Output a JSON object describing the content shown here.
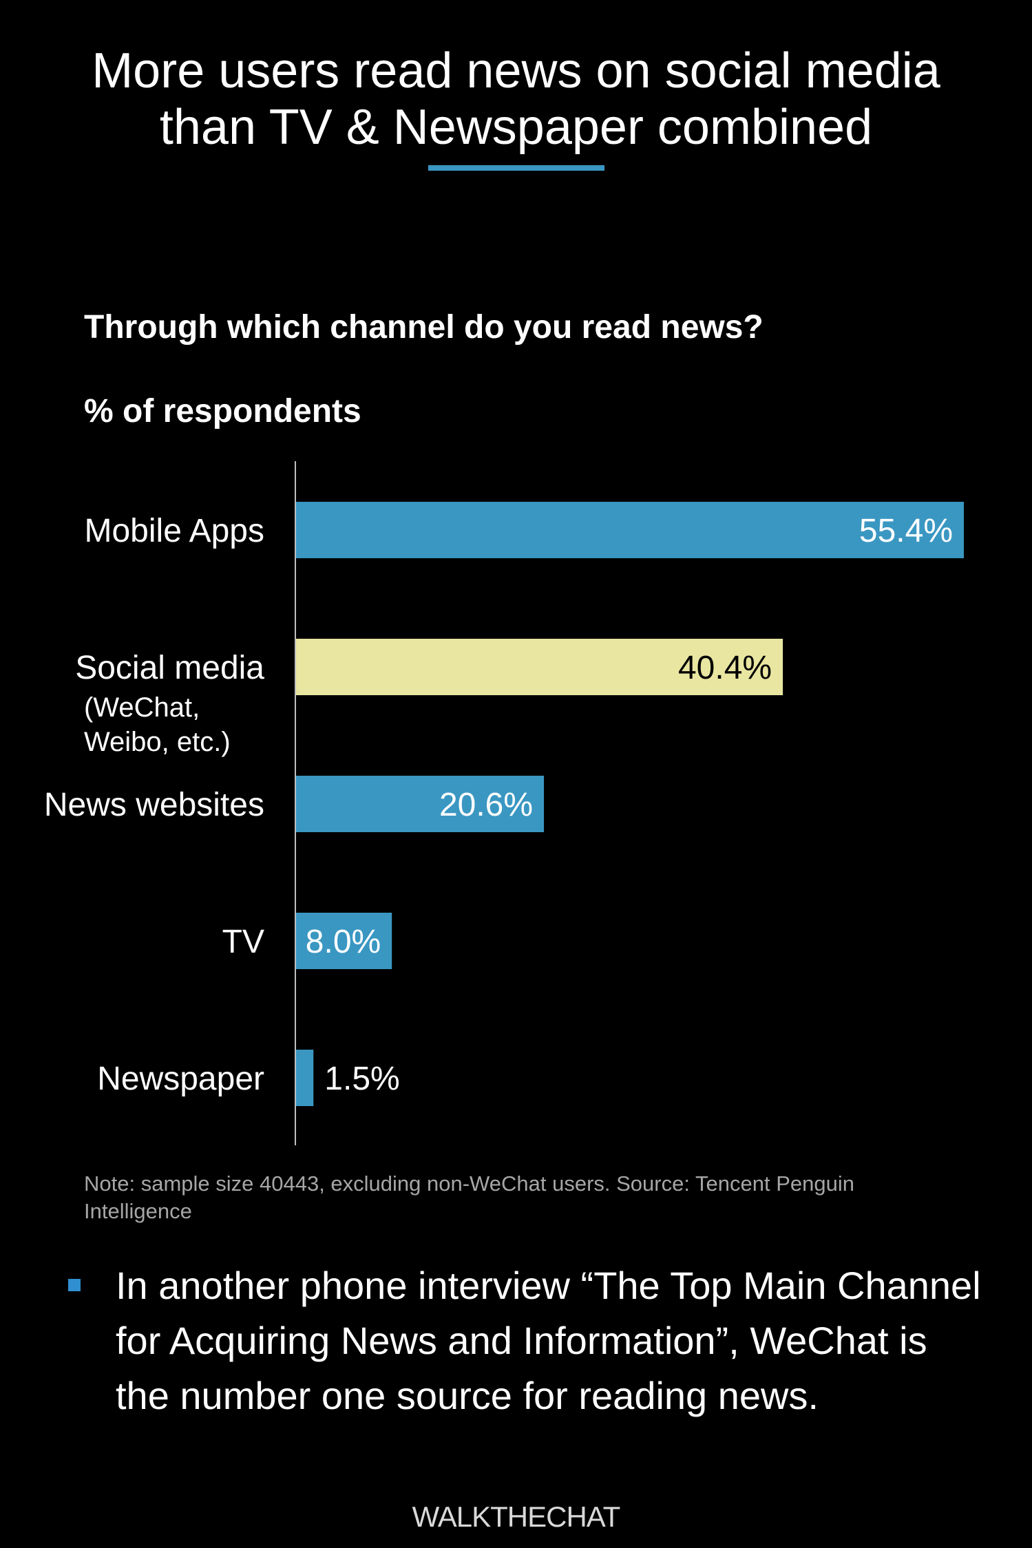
{
  "header": {
    "title_line1": "More users read news on social media",
    "title_line2": "than TV & Newspaper combined"
  },
  "chart_data": {
    "type": "bar",
    "orientation": "horizontal",
    "title": "Through which channel do you read news?",
    "ylabel": "% of respondents",
    "categories": [
      "Mobile Apps",
      "Social media",
      "News websites",
      "TV",
      "Newspaper"
    ],
    "category_sublabels": [
      "",
      "(WeChat,\nWeibo, etc.)",
      "",
      "",
      ""
    ],
    "values": [
      55.4,
      40.4,
      20.6,
      8.0,
      1.5
    ],
    "value_labels": [
      "55.4%",
      "40.4%",
      "20.6%",
      "8.0%",
      "1.5%"
    ],
    "colors": [
      "#3a97c2",
      "#e8e6a1",
      "#3a97c2",
      "#3a97c2",
      "#3a97c2"
    ],
    "xlim": [
      0,
      55.4
    ],
    "grid": false,
    "legend": "none"
  },
  "note": "Note: sample size 40443, excluding non-WeChat users. Source: Tencent Penguin Intelligence",
  "bullet": {
    "text": "In another phone interview “The Top Main Channel for Acquiring News and Information”, WeChat is the number one source for reading news."
  },
  "brand": "WALKTHECHAT",
  "colors": {
    "background": "#000000",
    "accent": "#3a97c2",
    "highlight": "#e8e6a1"
  }
}
